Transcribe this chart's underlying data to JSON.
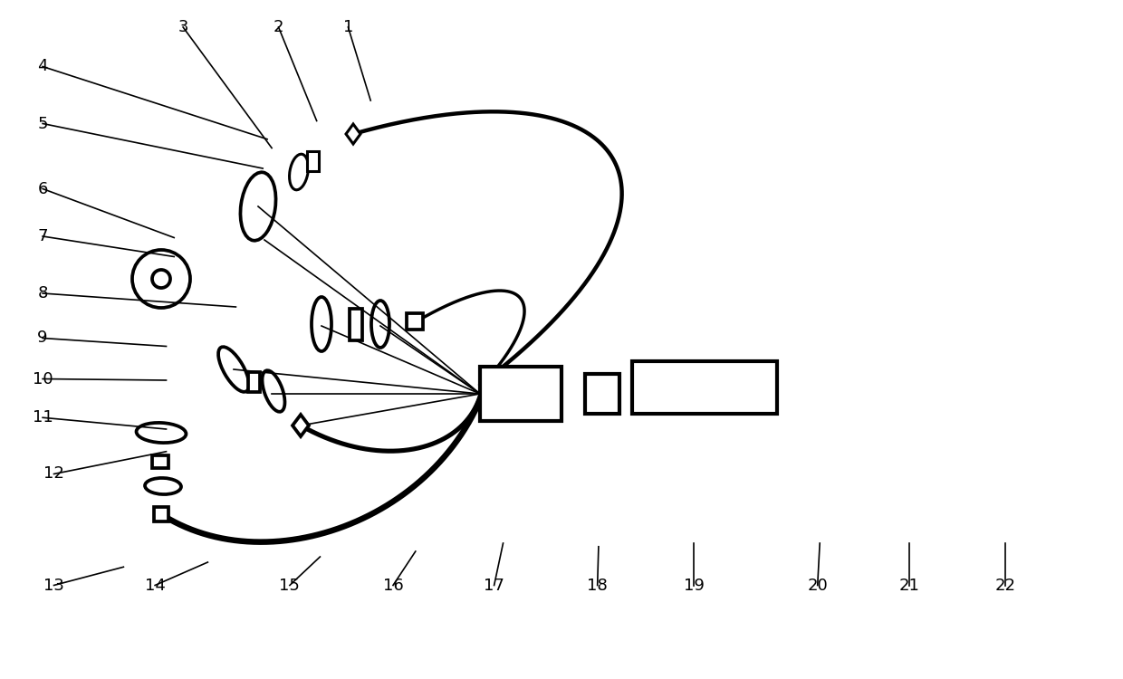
{
  "bg_color": "#ffffff",
  "lc": "#000000",
  "lw": 2.2,
  "lw_thin": 1.2,
  "lw_thick": 3.5,
  "figsize": [
    12.4,
    7.5
  ],
  "dpi": 100,
  "annotations": [
    [
      "1",
      [
        0.31,
        0.04
      ],
      [
        0.33,
        0.148
      ]
    ],
    [
      "2",
      [
        0.248,
        0.04
      ],
      [
        0.282,
        0.178
      ]
    ],
    [
      "3",
      [
        0.163,
        0.04
      ],
      [
        0.242,
        0.218
      ]
    ],
    [
      "4",
      [
        0.038,
        0.098
      ],
      [
        0.238,
        0.205
      ]
    ],
    [
      "5",
      [
        0.038,
        0.182
      ],
      [
        0.234,
        0.248
      ]
    ],
    [
      "6",
      [
        0.038,
        0.278
      ],
      [
        0.155,
        0.35
      ]
    ],
    [
      "7",
      [
        0.038,
        0.348
      ],
      [
        0.155,
        0.378
      ]
    ],
    [
      "8",
      [
        0.038,
        0.432
      ],
      [
        0.21,
        0.452
      ]
    ],
    [
      "9",
      [
        0.038,
        0.498
      ],
      [
        0.148,
        0.51
      ]
    ],
    [
      "10",
      [
        0.038,
        0.558
      ],
      [
        0.148,
        0.56
      ]
    ],
    [
      "11",
      [
        0.038,
        0.615
      ],
      [
        0.148,
        0.632
      ]
    ],
    [
      "12",
      [
        0.048,
        0.698
      ],
      [
        0.148,
        0.665
      ]
    ],
    [
      "13",
      [
        0.048,
        0.862
      ],
      [
        0.11,
        0.835
      ]
    ],
    [
      "14",
      [
        0.138,
        0.862
      ],
      [
        0.185,
        0.828
      ]
    ],
    [
      "15",
      [
        0.258,
        0.862
      ],
      [
        0.285,
        0.82
      ]
    ],
    [
      "16",
      [
        0.35,
        0.862
      ],
      [
        0.37,
        0.812
      ]
    ],
    [
      "17",
      [
        0.44,
        0.862
      ],
      [
        0.448,
        0.8
      ]
    ],
    [
      "18",
      [
        0.532,
        0.862
      ],
      [
        0.533,
        0.805
      ]
    ],
    [
      "19",
      [
        0.618,
        0.862
      ],
      [
        0.618,
        0.8
      ]
    ],
    [
      "20",
      [
        0.728,
        0.862
      ],
      [
        0.73,
        0.8
      ]
    ],
    [
      "21",
      [
        0.81,
        0.862
      ],
      [
        0.81,
        0.8
      ]
    ],
    [
      "22",
      [
        0.895,
        0.862
      ],
      [
        0.895,
        0.8
      ]
    ]
  ]
}
